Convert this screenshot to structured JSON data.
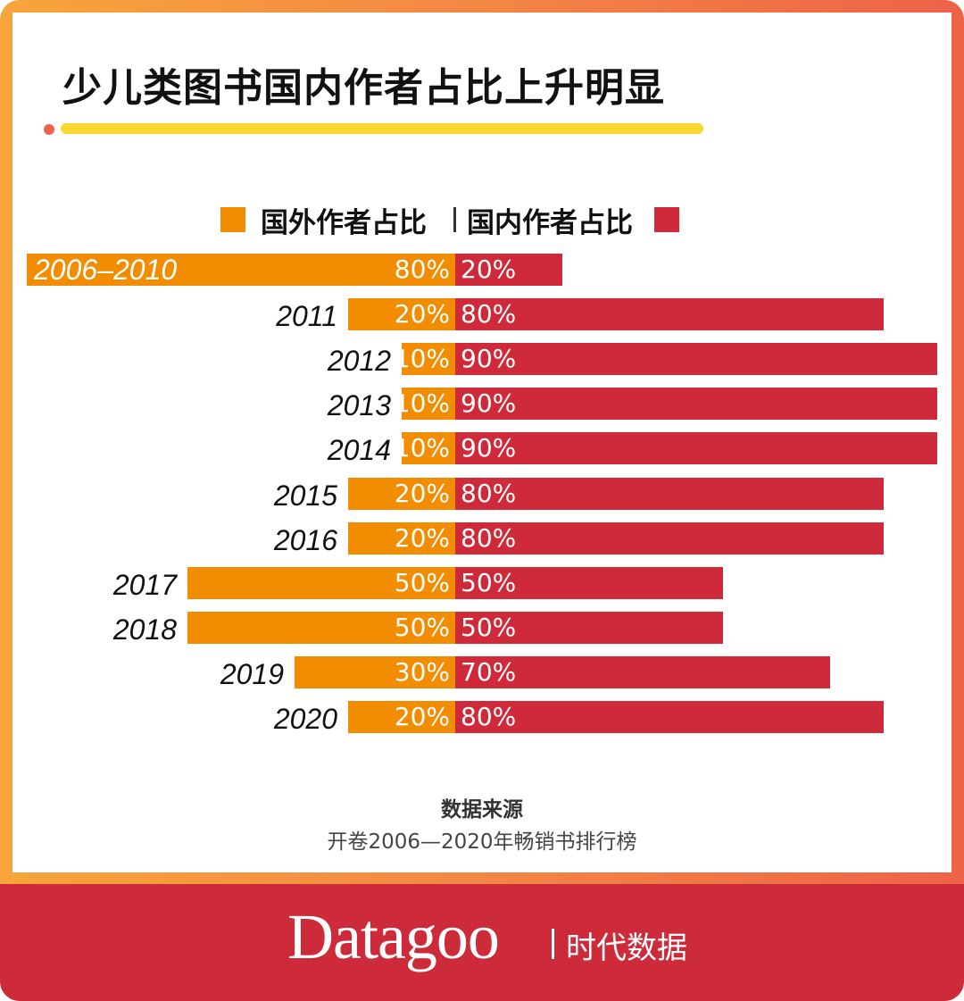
{
  "title": "少儿类图书国内作者占比上升明显",
  "colors": {
    "foreign": "#f28c00",
    "domestic": "#cf2a3a",
    "accent_line": "#fbd530",
    "footer": "#cd2b3a"
  },
  "legend": {
    "foreign": "国外作者占比",
    "domestic": "国内作者占比"
  },
  "chart_data": {
    "type": "bar",
    "orientation": "horizontal-diverging",
    "categories": [
      "2006-2010",
      "2011",
      "2012",
      "2013",
      "2014",
      "2015",
      "2016",
      "2017",
      "2018",
      "2019",
      "2020"
    ],
    "series": [
      {
        "name": "国外作者占比",
        "values": [
          80,
          20,
          10,
          10,
          10,
          20,
          20,
          50,
          50,
          30,
          20
        ]
      },
      {
        "name": "国内作者占比",
        "values": [
          20,
          80,
          90,
          90,
          90,
          80,
          80,
          50,
          50,
          70,
          80
        ]
      }
    ],
    "unit": "%",
    "xlim": [
      0,
      100
    ],
    "grid": false,
    "legend_position": "top"
  },
  "source": {
    "heading": "数据来源",
    "text": "开卷2006—2020年畅销书排行榜"
  },
  "footer": {
    "logo": "Datagoo",
    "logo_cn": "时代数据"
  }
}
